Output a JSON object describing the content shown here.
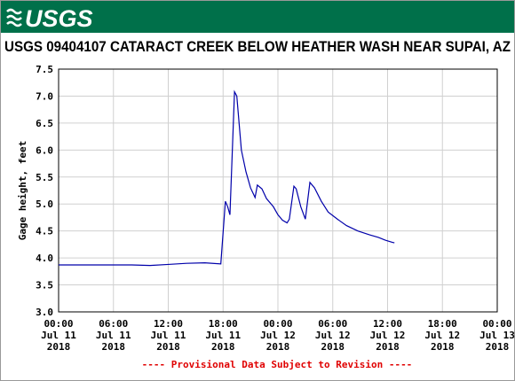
{
  "logo": "USGS",
  "chart_data": {
    "type": "line",
    "title": "USGS 09404107 CATARACT CREEK BELOW HEATHER WASH NEAR SUPAI, AZ",
    "ylabel": "Gage height, feet",
    "footer": "---- Provisional Data Subject to Revision ----",
    "grid": true,
    "color": "#0000aa",
    "xlim": [
      "2018-07-11T00:00",
      "2018-07-13T00:00"
    ],
    "xticks": [
      {
        "value": "2018-07-11T00:00",
        "label": [
          "00:00",
          "Jul 11",
          "2018"
        ]
      },
      {
        "value": "2018-07-11T06:00",
        "label": [
          "06:00",
          "Jul 11",
          "2018"
        ]
      },
      {
        "value": "2018-07-11T12:00",
        "label": [
          "12:00",
          "Jul 11",
          "2018"
        ]
      },
      {
        "value": "2018-07-11T18:00",
        "label": [
          "18:00",
          "Jul 11",
          "2018"
        ]
      },
      {
        "value": "2018-07-12T00:00",
        "label": [
          "00:00",
          "Jul 12",
          "2018"
        ]
      },
      {
        "value": "2018-07-12T06:00",
        "label": [
          "06:00",
          "Jul 12",
          "2018"
        ]
      },
      {
        "value": "2018-07-12T12:00",
        "label": [
          "12:00",
          "Jul 12",
          "2018"
        ]
      },
      {
        "value": "2018-07-12T18:00",
        "label": [
          "18:00",
          "Jul 12",
          "2018"
        ]
      },
      {
        "value": "2018-07-13T00:00",
        "label": [
          "00:00",
          "Jul 13",
          "2018"
        ]
      }
    ],
    "ylim": [
      3,
      7.5
    ],
    "yticks": [
      {
        "value": 3,
        "label": "3.0"
      },
      {
        "value": 3.5,
        "label": "3.5"
      },
      {
        "value": 4,
        "label": "4.0"
      },
      {
        "value": 4.5,
        "label": "4.5"
      },
      {
        "value": 5,
        "label": "5.0"
      },
      {
        "value": 5.5,
        "label": "5.5"
      },
      {
        "value": 6,
        "label": "6.0"
      },
      {
        "value": 6.5,
        "label": "6.5"
      },
      {
        "value": 7,
        "label": "7.0"
      },
      {
        "value": 7.5,
        "label": "7.5"
      }
    ],
    "x": [
      "2018-07-11T00:00",
      "2018-07-11T08:00",
      "2018-07-11T10:00",
      "2018-07-11T12:00",
      "2018-07-11T14:00",
      "2018-07-11T16:00",
      "2018-07-11T17:45",
      "2018-07-11T18:15",
      "2018-07-11T18:30",
      "2018-07-11T18:45",
      "2018-07-11T19:15",
      "2018-07-11T19:30",
      "2018-07-11T20:00",
      "2018-07-11T20:30",
      "2018-07-11T21:00",
      "2018-07-11T21:30",
      "2018-07-11T21:45",
      "2018-07-11T22:15",
      "2018-07-11T22:45",
      "2018-07-11T23:30",
      "2018-07-12T00:00",
      "2018-07-12T00:30",
      "2018-07-12T01:00",
      "2018-07-12T01:15",
      "2018-07-12T01:45",
      "2018-07-12T02:00",
      "2018-07-12T02:30",
      "2018-07-12T03:00",
      "2018-07-12T03:30",
      "2018-07-12T04:00",
      "2018-07-12T04:45",
      "2018-07-12T05:30",
      "2018-07-12T06:30",
      "2018-07-12T07:30",
      "2018-07-12T08:45",
      "2018-07-12T10:00",
      "2018-07-12T11:00",
      "2018-07-12T11:45",
      "2018-07-12T12:30",
      "2018-07-12T12:45"
    ],
    "values": [
      3.87,
      3.87,
      3.86,
      3.88,
      3.9,
      3.91,
      3.89,
      5.05,
      4.95,
      4.8,
      7.08,
      7.0,
      6.0,
      5.6,
      5.3,
      5.12,
      5.35,
      5.28,
      5.1,
      4.95,
      4.8,
      4.7,
      4.65,
      4.72,
      5.33,
      5.28,
      4.95,
      4.72,
      5.4,
      5.3,
      5.05,
      4.85,
      4.72,
      4.6,
      4.5,
      4.43,
      4.38,
      4.33,
      4.29,
      4.28
    ]
  }
}
